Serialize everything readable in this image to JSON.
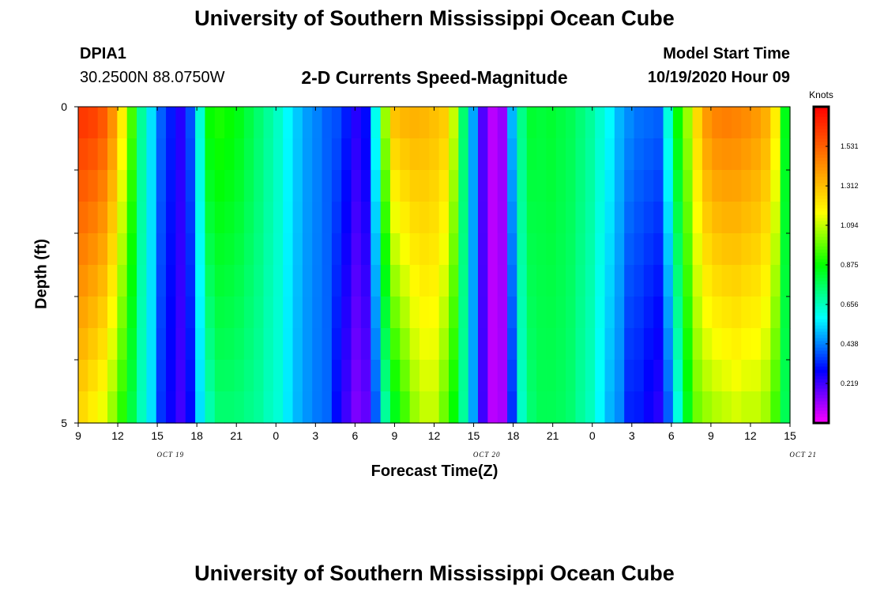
{
  "header": {
    "title": "University of Southern Mississippi Ocean Cube",
    "station_id": "DPIA1",
    "station_coords": "30.2500N 88.0750W",
    "plot_title": "2-D Currents Speed-Magnitude",
    "model_start_label": "Model Start Time",
    "model_start_value": "10/19/2020 Hour 09"
  },
  "footer": {
    "title": "University of Southern Mississippi Ocean Cube"
  },
  "colors": {
    "colormap": [
      "#ff00ff",
      "#8000ff",
      "#0000ff",
      "#0080ff",
      "#00ffff",
      "#00ff80",
      "#00ff00",
      "#80ff00",
      "#ffff00",
      "#ffbf00",
      "#ff8000",
      "#ff4000",
      "#ff0000"
    ]
  },
  "chart_data": {
    "type": "heatmap",
    "title": "2-D Currents Speed-Magnitude",
    "xlabel": "Forecast Time(Z)",
    "ylabel": "Depth (ft)",
    "colorbar_label": "Knots",
    "colorbar_ticks": [
      "1.531",
      "1.312",
      "1.094",
      "0.875",
      "0.656",
      "0.438",
      "0.219"
    ],
    "colorbar_range": [
      0,
      1.75
    ],
    "x_tick_labels": [
      "9",
      "12",
      "15",
      "18",
      "21",
      "0",
      "3",
      "6",
      "9",
      "12",
      "15",
      "18",
      "21",
      "0",
      "3",
      "6",
      "9",
      "12",
      "15"
    ],
    "date_labels": [
      {
        "label": "OCT 19",
        "at_hour": 16
      },
      {
        "label": "OCT 20",
        "at_hour": 40
      },
      {
        "label": "OCT 21",
        "at_hour": 64
      }
    ],
    "x_range_hours": [
      0,
      54
    ],
    "y_range": [
      0,
      5
    ],
    "y_tick_labels": [
      "0",
      "5"
    ],
    "grid": false,
    "depth_layers": [
      0.25,
      0.75,
      1.25,
      1.75,
      2.25,
      2.75,
      3.25,
      3.75,
      4.25,
      4.75
    ],
    "surface_speed_knots": [
      1.62,
      1.6,
      1.55,
      1.42,
      1.2,
      0.95,
      0.7,
      0.55,
      0.4,
      0.32,
      0.25,
      0.38,
      0.63,
      0.88,
      0.9,
      0.88,
      0.85,
      0.8,
      0.75,
      0.7,
      0.65,
      0.58,
      0.52,
      0.47,
      0.44,
      0.4,
      0.38,
      0.32,
      0.25,
      0.3,
      0.6,
      1.05,
      1.3,
      1.33,
      1.34,
      1.33,
      1.31,
      1.28,
      1.1,
      0.75,
      0.48,
      0.2,
      0.08,
      0.12,
      0.5,
      0.72,
      0.82,
      0.81,
      0.82,
      0.8,
      0.78,
      0.74,
      0.7,
      0.64,
      0.58,
      0.5,
      0.45,
      0.42,
      0.41,
      0.4,
      0.62,
      0.88,
      1.05,
      1.25,
      1.4,
      1.45,
      1.46,
      1.45,
      1.43,
      1.4,
      1.35,
      1.2,
      0.85
    ],
    "bottom_speed_knots": [
      1.25,
      1.2,
      1.15,
      1.05,
      0.92,
      0.8,
      0.66,
      0.55,
      0.35,
      0.28,
      0.22,
      0.3,
      0.55,
      0.68,
      0.75,
      0.75,
      0.74,
      0.72,
      0.7,
      0.66,
      0.63,
      0.56,
      0.5,
      0.46,
      0.43,
      0.41,
      0.3,
      0.22,
      0.15,
      0.18,
      0.4,
      0.7,
      0.85,
      0.95,
      1.05,
      1.1,
      1.1,
      1.0,
      0.88,
      0.7,
      0.48,
      0.22,
      0.08,
      0.1,
      0.35,
      0.65,
      0.75,
      0.78,
      0.78,
      0.77,
      0.75,
      0.7,
      0.66,
      0.58,
      0.5,
      0.45,
      0.33,
      0.32,
      0.28,
      0.25,
      0.4,
      0.62,
      0.85,
      1.0,
      1.05,
      1.08,
      1.1,
      1.12,
      1.1,
      1.1,
      1.06,
      0.95,
      0.78
    ]
  }
}
